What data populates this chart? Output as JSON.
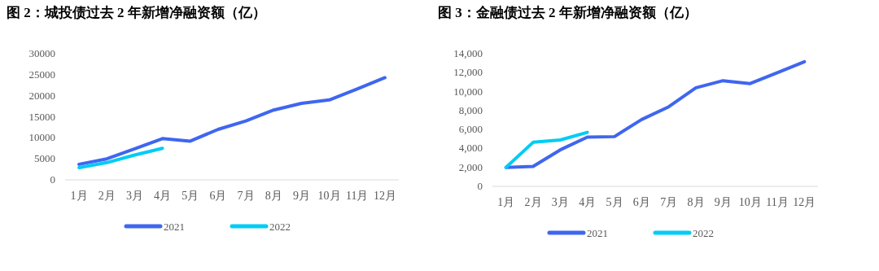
{
  "chart_data": [
    {
      "type": "line",
      "title": "图 2：城投债过去 2 年新增净融资额（亿）",
      "categories": [
        "1月",
        "2月",
        "3月",
        "4月",
        "5月",
        "6月",
        "7月",
        "8月",
        "9月",
        "10月",
        "11月",
        "12月"
      ],
      "ylim": [
        0,
        30000
      ],
      "yticks": [
        0,
        5000,
        10000,
        15000,
        20000,
        25000,
        30000
      ],
      "grid": false,
      "legend": "bottom",
      "marker": "none",
      "series": [
        {
          "name": "2021",
          "color": "#3f66f0",
          "values": [
            3700,
            5000,
            7400,
            9800,
            9200,
            12000,
            14000,
            16600,
            18200,
            19000,
            21600,
            24300
          ]
        },
        {
          "name": "2022",
          "color": "#00ccf5",
          "values": [
            2900,
            4100,
            5900,
            7500,
            null,
            null,
            null,
            null,
            null,
            null,
            null,
            null
          ]
        }
      ]
    },
    {
      "type": "line",
      "title": "图 3：金融债过去 2 年新增净融资额（亿）",
      "categories": [
        "1月",
        "2月",
        "3月",
        "4月",
        "5月",
        "6月",
        "7月",
        "8月",
        "9月",
        "10月",
        "11月",
        "12月"
      ],
      "ylim": [
        0,
        14000
      ],
      "yticks": [
        0,
        {
          "value": 2000,
          "label": "2,000"
        },
        {
          "value": 4000,
          "label": "4,000"
        },
        {
          "value": 6000,
          "label": "6,000"
        },
        {
          "value": 8000,
          "label": "8,000"
        },
        {
          "value": 10000,
          "label": "10,000"
        },
        {
          "value": 12000,
          "label": "12,000"
        },
        {
          "value": 14000,
          "label": "14,000"
        }
      ],
      "grid": false,
      "legend": "bottom",
      "marker": "none",
      "series": [
        {
          "name": "2021",
          "color": "#3f66f0",
          "values": [
            2000,
            2100,
            3850,
            5200,
            5250,
            7050,
            8400,
            10400,
            11150,
            10850,
            12000,
            13150
          ]
        },
        {
          "name": "2022",
          "color": "#00ccf5",
          "values": [
            2000,
            4650,
            4900,
            5700,
            null,
            null,
            null,
            null,
            null,
            null,
            null,
            null
          ]
        }
      ]
    }
  ]
}
